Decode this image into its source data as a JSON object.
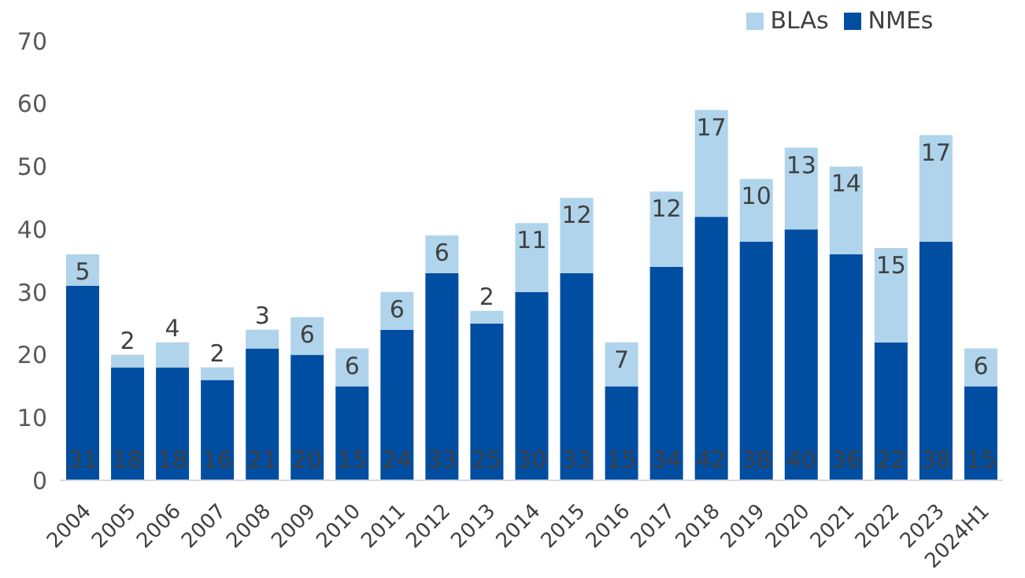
{
  "chart_data": {
    "type": "bar",
    "stacked": true,
    "legend": "top",
    "data_labels": true,
    "grid": false,
    "categories": [
      "2004",
      "2005",
      "2006",
      "2007",
      "2008",
      "2009",
      "2010",
      "2011",
      "2012",
      "2013",
      "2014",
      "2015",
      "2016",
      "2017",
      "2018",
      "2019",
      "2020",
      "2021",
      "2022",
      "2023",
      "2024H1"
    ],
    "series": [
      {
        "name": "NMEs",
        "color": "#004ea2",
        "values": [
          31,
          18,
          18,
          16,
          21,
          20,
          15,
          24,
          33,
          25,
          30,
          33,
          15,
          34,
          42,
          38,
          40,
          36,
          22,
          38,
          15
        ]
      },
      {
        "name": "BLAs",
        "color": "#afd4ec",
        "values": [
          5,
          2,
          4,
          2,
          3,
          6,
          6,
          6,
          6,
          2,
          11,
          12,
          7,
          12,
          17,
          10,
          13,
          14,
          15,
          17,
          6
        ]
      }
    ],
    "ylim": [
      0,
      70
    ],
    "yticks": [
      0,
      10,
      20,
      30,
      40,
      50,
      60,
      70
    ]
  }
}
